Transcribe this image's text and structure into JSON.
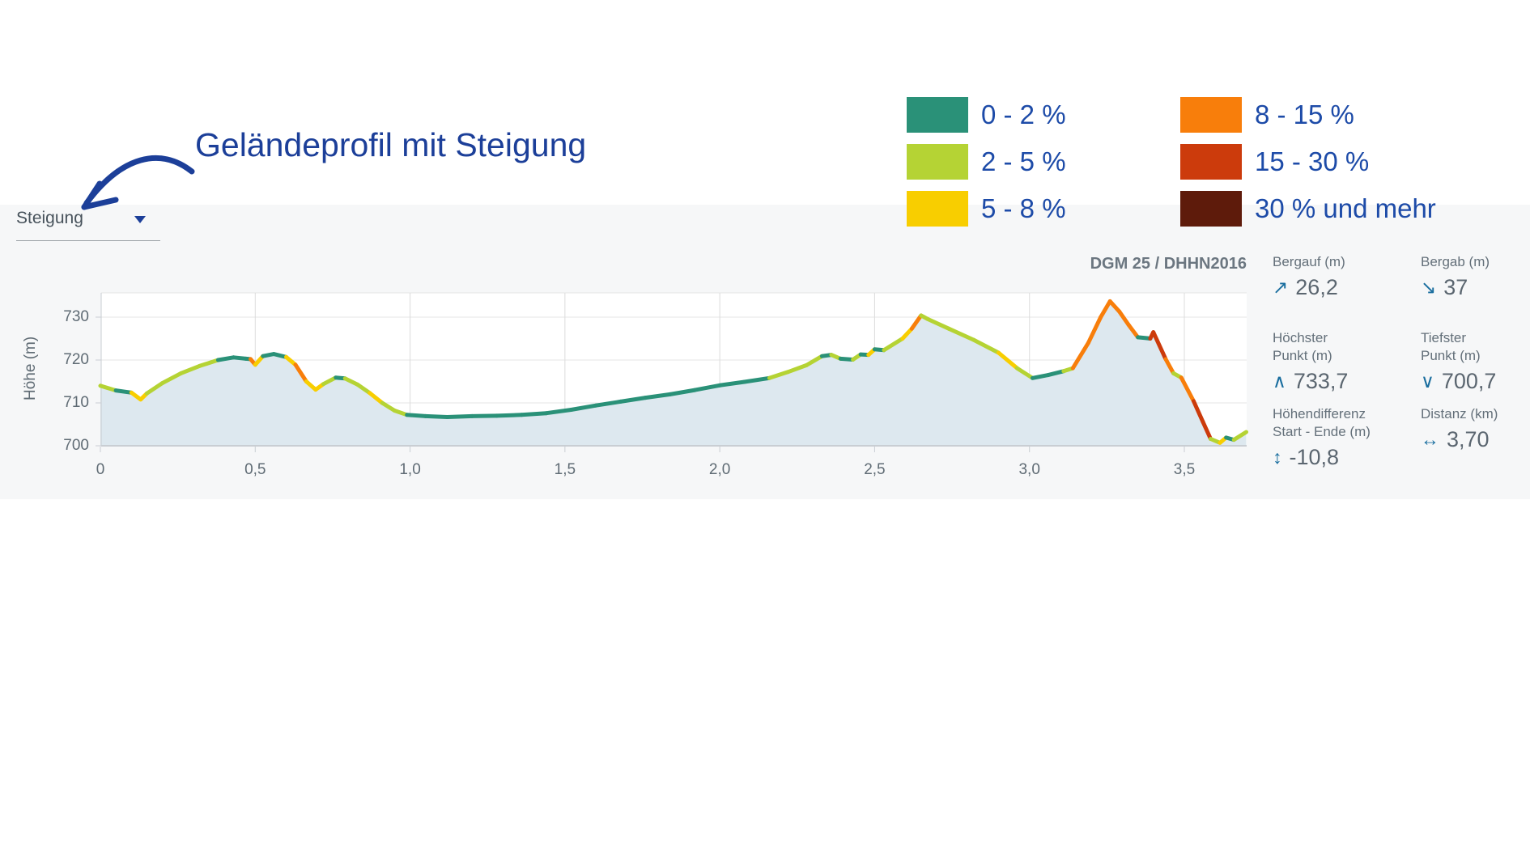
{
  "annotation": {
    "title": "Geländeprofil mit Steigung"
  },
  "controls": {
    "slope_dropdown_label": "Steigung"
  },
  "legend": {
    "items": [
      {
        "label": "0 - 2 %",
        "color": "#2a9178"
      },
      {
        "label": "2 - 5 %",
        "color": "#b5d334"
      },
      {
        "label": "5 - 8 %",
        "color": "#f8ce00"
      },
      {
        "label": "8 - 15 %",
        "color": "#f87e0b"
      },
      {
        "label": "15 - 30 %",
        "color": "#cc3b0c"
      },
      {
        "label": "30 % und mehr",
        "color": "#5e1b0b"
      }
    ]
  },
  "chart": {
    "source_label": "DGM 25 / DHHN2016",
    "ylabel": "Höhe (m)"
  },
  "stats": [
    {
      "label_lines": [
        "Bergauf (m)"
      ],
      "icon": "↗",
      "value": "26,2"
    },
    {
      "label_lines": [
        "Bergab (m)"
      ],
      "icon": "↘",
      "value": "37"
    },
    {
      "label_lines": [
        "Höchster",
        "Punkt (m)"
      ],
      "icon": "∧",
      "value": "733,7"
    },
    {
      "label_lines": [
        "Tiefster",
        "Punkt (m)"
      ],
      "icon": "∨",
      "value": "700,7"
    },
    {
      "label_lines": [
        "Höhendifferenz",
        "Start - Ende (m)"
      ],
      "icon": "↕",
      "value": "-10,8"
    },
    {
      "label_lines": [
        "Distanz (km)"
      ],
      "icon": "↔",
      "value": "3,70"
    }
  ],
  "chart_data": {
    "type": "area",
    "title": "Geländeprofil mit Steigung",
    "xlabel": "Distanz (km)",
    "ylabel": "Höhe (m)",
    "x_range_km": [
      0,
      3.7
    ],
    "y_range_m": [
      700,
      735.7
    ],
    "x_tick_labels": [
      "0",
      "0,5",
      "1,0",
      "1,5",
      "2,0",
      "2,5",
      "3,0",
      "3,5"
    ],
    "x_ticks_km": [
      0,
      0.5,
      1.0,
      1.5,
      2.0,
      2.5,
      3.0,
      3.5
    ],
    "y_ticks_m": [
      700,
      710,
      720,
      730
    ],
    "grid": true,
    "legend_position": "top-right",
    "slope_class_upper_bounds_pct": [
      2,
      5,
      8,
      15,
      30,
      null
    ],
    "fill_color": "#dde8ef",
    "stats_summary": {
      "bergauf_m": 26.2,
      "bergab_m": 37,
      "hoechster_punkt_m": 733.7,
      "tiefster_punkt_m": 700.7,
      "hoehendifferenz_start_ende_m": -10.8,
      "distanz_km": 3.7
    },
    "profile_points_km_m": [
      [
        0.0,
        714.0
      ],
      [
        0.05,
        712.9
      ],
      [
        0.1,
        712.4
      ],
      [
        0.13,
        710.8
      ],
      [
        0.15,
        712.2
      ],
      [
        0.2,
        714.6
      ],
      [
        0.26,
        716.9
      ],
      [
        0.32,
        718.6
      ],
      [
        0.38,
        720.0
      ],
      [
        0.43,
        720.6
      ],
      [
        0.47,
        720.3
      ],
      [
        0.485,
        720.2
      ],
      [
        0.5,
        718.9
      ],
      [
        0.525,
        720.9
      ],
      [
        0.56,
        721.4
      ],
      [
        0.6,
        720.7
      ],
      [
        0.63,
        718.9
      ],
      [
        0.665,
        715.0
      ],
      [
        0.695,
        713.1
      ],
      [
        0.72,
        714.4
      ],
      [
        0.76,
        715.9
      ],
      [
        0.79,
        715.7
      ],
      [
        0.83,
        714.3
      ],
      [
        0.87,
        712.3
      ],
      [
        0.91,
        710.0
      ],
      [
        0.95,
        708.2
      ],
      [
        0.99,
        707.2
      ],
      [
        1.05,
        706.9
      ],
      [
        1.12,
        706.7
      ],
      [
        1.2,
        706.9
      ],
      [
        1.28,
        707.0
      ],
      [
        1.36,
        707.2
      ],
      [
        1.44,
        707.6
      ],
      [
        1.52,
        708.4
      ],
      [
        1.6,
        709.4
      ],
      [
        1.68,
        710.3
      ],
      [
        1.76,
        711.2
      ],
      [
        1.84,
        712.0
      ],
      [
        1.92,
        713.0
      ],
      [
        2.0,
        714.1
      ],
      [
        2.08,
        714.9
      ],
      [
        2.16,
        715.8
      ],
      [
        2.22,
        717.2
      ],
      [
        2.28,
        718.8
      ],
      [
        2.33,
        720.9
      ],
      [
        2.36,
        721.2
      ],
      [
        2.39,
        720.3
      ],
      [
        2.43,
        720.1
      ],
      [
        2.455,
        721.3
      ],
      [
        2.48,
        721.2
      ],
      [
        2.5,
        722.5
      ],
      [
        2.53,
        722.3
      ],
      [
        2.59,
        725.0
      ],
      [
        2.62,
        727.3
      ],
      [
        2.65,
        730.4
      ],
      [
        2.67,
        729.6
      ],
      [
        2.74,
        727.3
      ],
      [
        2.82,
        724.7
      ],
      [
        2.9,
        721.7
      ],
      [
        2.96,
        718.1
      ],
      [
        3.01,
        715.8
      ],
      [
        3.06,
        716.5
      ],
      [
        3.11,
        717.4
      ],
      [
        3.14,
        718.1
      ],
      [
        3.19,
        724.0
      ],
      [
        3.23,
        730.0
      ],
      [
        3.26,
        733.7
      ],
      [
        3.29,
        731.3
      ],
      [
        3.32,
        728.2
      ],
      [
        3.35,
        725.3
      ],
      [
        3.38,
        725.1
      ],
      [
        3.39,
        725.0
      ],
      [
        3.4,
        726.5
      ],
      [
        3.44,
        720.2
      ],
      [
        3.465,
        716.9
      ],
      [
        3.49,
        715.9
      ],
      [
        3.53,
        710.4
      ],
      [
        3.56,
        705.6
      ],
      [
        3.585,
        701.6
      ],
      [
        3.615,
        700.7
      ],
      [
        3.635,
        701.9
      ],
      [
        3.66,
        701.4
      ],
      [
        3.7,
        703.2
      ]
    ]
  }
}
